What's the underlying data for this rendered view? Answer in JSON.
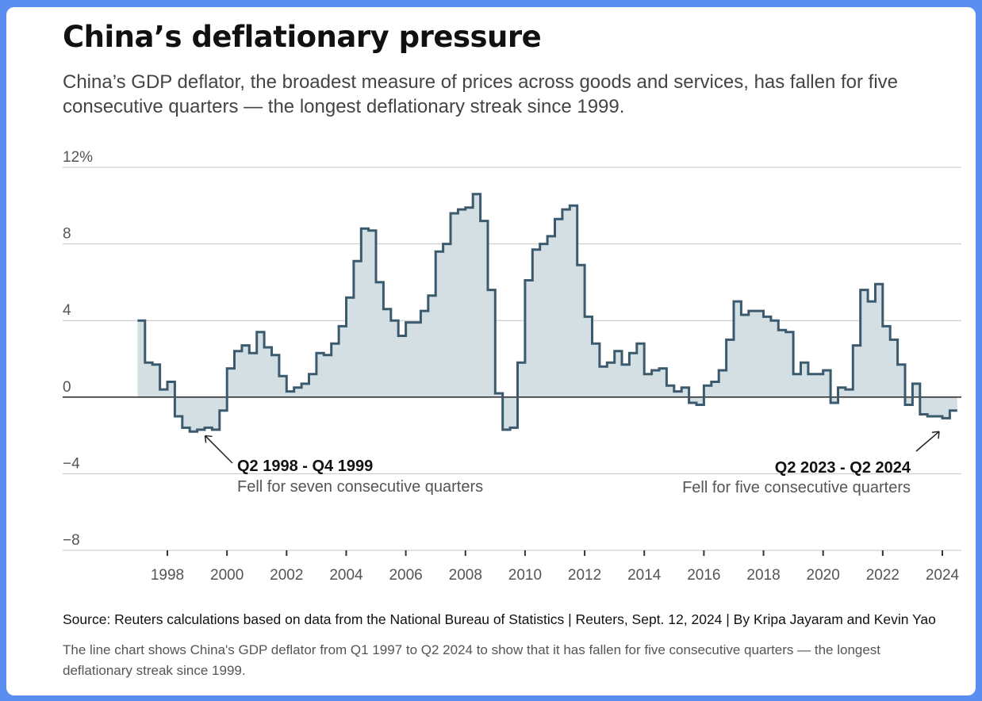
{
  "title": "China’s deflationary pressure",
  "subtitle": "China’s GDP deflator, the broadest measure of prices across goods and services, has fallen for five consecutive quarters — the longest deflationary streak since 1999.",
  "source": "Source: Reuters calculations based on data from the National Bureau of Statistics | Reuters, Sept. 12, 2024 | By Kripa Jayaram and Kevin Yao",
  "alt_text": "The line chart shows China's GDP deflator from Q1 1997 to Q2 2024 to show that it has fallen for five consecutive quarters — the longest deflationary streak since 1999.",
  "colors": {
    "line": "#3b5a6e",
    "fill": "#d3dfe3",
    "grid": "#c4c4c4",
    "zero_line": "#222222",
    "text": "#555555"
  },
  "chart_data": {
    "type": "line",
    "step": true,
    "filled": true,
    "title": "China’s deflationary pressure",
    "xlabel": "",
    "ylabel": "",
    "ylim": [
      -8,
      12
    ],
    "xlim": [
      1997.0,
      2024.5
    ],
    "y_ticks": [
      12,
      8,
      4,
      0,
      -4,
      -8
    ],
    "y_tick_labels": [
      "12%",
      "8",
      "4",
      "0",
      "−4",
      "−8"
    ],
    "x_ticks": [
      1998,
      2000,
      2002,
      2004,
      2006,
      2008,
      2010,
      2012,
      2014,
      2016,
      2018,
      2020,
      2022,
      2024
    ],
    "x_tick_labels": [
      "1998",
      "2000",
      "2002",
      "2004",
      "2006",
      "2008",
      "2010",
      "2012",
      "2014",
      "2016",
      "2018",
      "2020",
      "2022",
      "2024"
    ],
    "grid": true,
    "series": [
      {
        "start": "1997 Q1",
        "frequency": "quarterly",
        "values": [
          4.0,
          1.8,
          1.7,
          0.4,
          0.8,
          -1.0,
          -1.6,
          -1.8,
          -1.7,
          -1.6,
          -1.7,
          -0.7,
          1.5,
          2.4,
          2.7,
          2.3,
          3.4,
          2.6,
          2.2,
          1.1,
          0.3,
          0.5,
          0.7,
          1.2,
          2.3,
          2.2,
          2.8,
          3.7,
          5.2,
          7.1,
          8.8,
          8.7,
          6.0,
          4.6,
          4.0,
          3.2,
          3.9,
          3.9,
          4.5,
          5.3,
          7.6,
          8.0,
          9.6,
          9.8,
          9.9,
          10.6,
          9.2,
          5.6,
          0.2,
          -1.7,
          -1.6,
          1.8,
          6.1,
          7.7,
          8.0,
          8.4,
          9.3,
          9.8,
          10.0,
          6.9,
          4.2,
          2.8,
          1.6,
          1.8,
          2.4,
          1.7,
          2.3,
          2.8,
          1.2,
          1.4,
          1.5,
          0.6,
          0.3,
          0.5,
          -0.3,
          -0.4,
          0.6,
          0.8,
          1.4,
          3.0,
          5.0,
          4.3,
          4.5,
          4.5,
          4.2,
          4.0,
          3.5,
          3.4,
          1.2,
          1.8,
          1.2,
          1.2,
          1.4,
          -0.3,
          0.5,
          0.4,
          2.7,
          5.6,
          5.0,
          5.9,
          3.7,
          3.0,
          1.7,
          -0.4,
          0.7,
          -0.9,
          -1.0,
          -1.0,
          -1.1,
          -0.7
        ]
      }
    ],
    "annotations": [
      {
        "title": "Q2 1998 - Q4 1999",
        "text": "Fell for seven consecutive quarters",
        "x": 1999.0,
        "y": -1.6
      },
      {
        "title": "Q2 2023 - Q2 2024",
        "text": "Fell for five consecutive quarters",
        "x": 2024.0,
        "y": -1.3
      }
    ]
  }
}
